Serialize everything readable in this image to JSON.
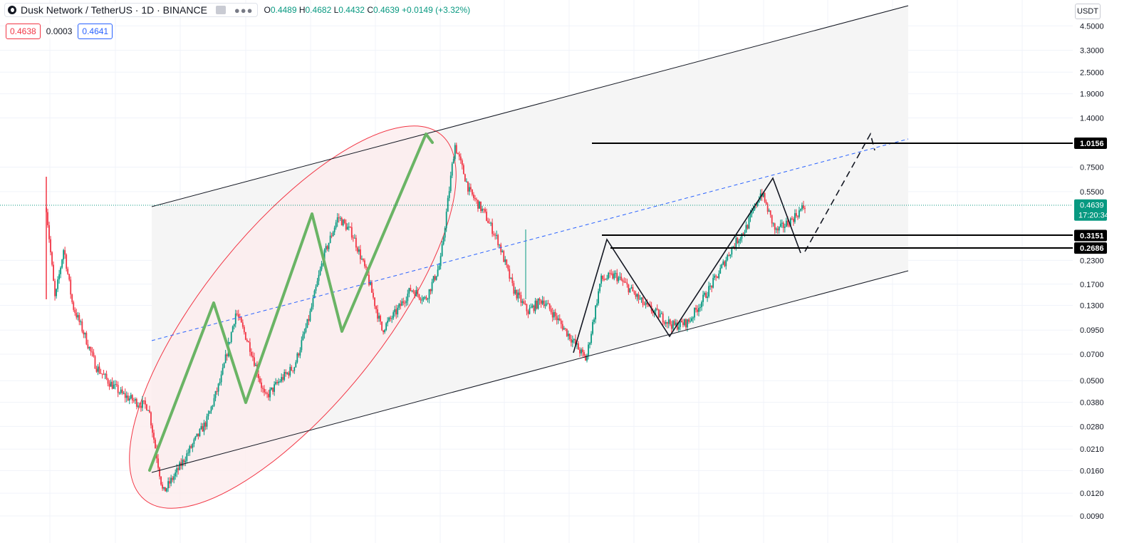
{
  "header": {
    "symbol_title": "Dusk Network / TetherUS · 1D · BINANCE",
    "ohlc": {
      "o_label": "O",
      "o_value": "0.4489",
      "h_label": "H",
      "h_value": "0.4682",
      "l_label": "L",
      "l_value": "0.4432",
      "c_label": "C",
      "c_value": "0.4639",
      "change": "+0.0149 (+3.32%)"
    },
    "sell_price": "0.4638",
    "spread": "0.0003",
    "buy_price": "0.4641",
    "currency_button": "USDT",
    "more_icon": "more-dots-icon",
    "flag_icon": "flag-icon",
    "logo_icon": "dusk-logo-icon"
  },
  "colors": {
    "up": "#089981",
    "down": "#f23645",
    "channel_fill": "#f5f5f5",
    "ellipse": "#f23645",
    "ellipse_fill": "#fdecee",
    "wave": "#6ab465",
    "midline": "#2962ff",
    "level_line": "#000000",
    "grid": "#f0f3fa"
  },
  "chart_data": {
    "type": "candlestick",
    "pair": "DUSK/USDT",
    "interval": "1D",
    "scale": "log",
    "y_ticks": [
      "4.5000",
      "3.3000",
      "2.5000",
      "1.9000",
      "1.4000",
      "1.0156",
      "0.7500",
      "0.5500",
      "0.4639",
      "0.3151",
      "0.2686",
      "0.2300",
      "0.1700",
      "0.1300",
      "0.0950",
      "0.0700",
      "0.0500",
      "0.0380",
      "0.0280",
      "0.0210",
      "0.0160",
      "0.0120",
      "0.0090"
    ],
    "current_price": {
      "value": "0.4639",
      "countdown": "17:20:34"
    },
    "levels": [
      {
        "value": "1.0156"
      },
      {
        "value": "0.3151"
      },
      {
        "value": "0.2686"
      }
    ],
    "price_path": [
      [
        0,
        0.45
      ],
      [
        0.6,
        0.14
      ],
      [
        1.2,
        0.27
      ],
      [
        1.8,
        0.13
      ],
      [
        2.6,
        0.09
      ],
      [
        3.4,
        0.06
      ],
      [
        4.2,
        0.05
      ],
      [
        5.2,
        0.042
      ],
      [
        6.2,
        0.038
      ],
      [
        7.0,
        0.036
      ],
      [
        8,
        0.012
      ],
      [
        9,
        0.016
      ],
      [
        10,
        0.022
      ],
      [
        11,
        0.03
      ],
      [
        12,
        0.052
      ],
      [
        13,
        0.12
      ],
      [
        14,
        0.075
      ],
      [
        15,
        0.04
      ],
      [
        16,
        0.05
      ],
      [
        17,
        0.06
      ],
      [
        18,
        0.11
      ],
      [
        19,
        0.24
      ],
      [
        20,
        0.4
      ],
      [
        21,
        0.32
      ],
      [
        22,
        0.19
      ],
      [
        23,
        0.095
      ],
      [
        24,
        0.12
      ],
      [
        25,
        0.16
      ],
      [
        26,
        0.14
      ],
      [
        27,
        0.22
      ],
      [
        28,
        1.0
      ],
      [
        29,
        0.55
      ],
      [
        30,
        0.42
      ],
      [
        31,
        0.29
      ],
      [
        32,
        0.16
      ],
      [
        33,
        0.12
      ],
      [
        34,
        0.14
      ],
      [
        35,
        0.11
      ],
      [
        36,
        0.085
      ],
      [
        37,
        0.065
      ],
      [
        38,
        0.18
      ],
      [
        39,
        0.19
      ],
      [
        40,
        0.16
      ],
      [
        41,
        0.13
      ],
      [
        42,
        0.115
      ],
      [
        43,
        0.1
      ],
      [
        44,
        0.105
      ],
      [
        45,
        0.14
      ],
      [
        46,
        0.19
      ],
      [
        47,
        0.27
      ],
      [
        48,
        0.35
      ],
      [
        49,
        0.55
      ],
      [
        50,
        0.33
      ],
      [
        51,
        0.38
      ],
      [
        52,
        0.46
      ]
    ],
    "annotations": {
      "channel": "ascending channel",
      "midline": "dashed midline",
      "ellipse": "highlighted impulse wave",
      "projection": "dashed projection to 1.0156"
    }
  }
}
